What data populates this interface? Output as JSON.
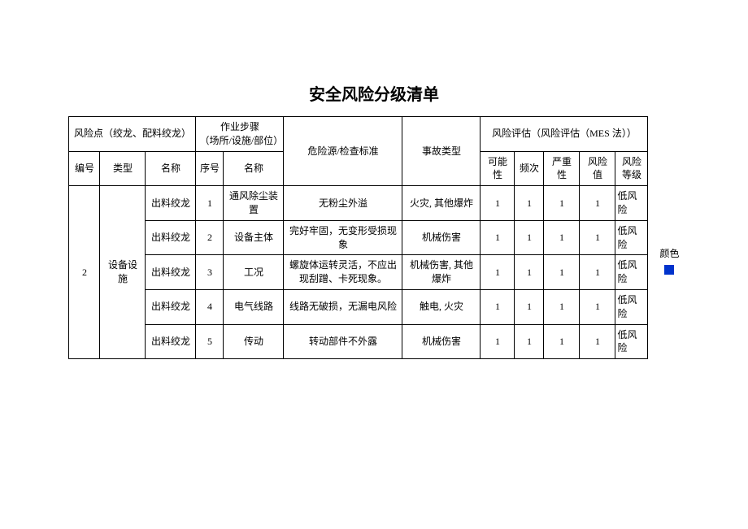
{
  "title": "安全风险分级清单",
  "header": {
    "risk_point": "风险点（绞龙、配料绞龙）",
    "work_step": "作业步骤\n（场所/设施/部位）",
    "hazard": "危险源/检查标准",
    "accident": "事故类型",
    "assessment": "风险评估（风险评估（MES 法））",
    "num": "编号",
    "type": "类型",
    "name": "名称",
    "seq": "序号",
    "step_name": "名称",
    "possibility": "可能性",
    "freq": "频次",
    "severity": "严重性",
    "riskval": "风险值",
    "level": "风险\n等级"
  },
  "group": {
    "num": "2",
    "type": "设备设施"
  },
  "rows": [
    {
      "name": "出料绞龙",
      "seq": "1",
      "step": "通风除尘装置",
      "hazard": "无粉尘外溢",
      "accident": "火灾, 其他爆炸",
      "p": "1",
      "f": "1",
      "s": "1",
      "rv": "1",
      "lvl": "低风险"
    },
    {
      "name": "出料绞龙",
      "seq": "2",
      "step": "设备主体",
      "hazard": "完好牢固，无变形受损现象",
      "accident": "机械伤害",
      "p": "1",
      "f": "1",
      "s": "1",
      "rv": "1",
      "lvl": "低风险"
    },
    {
      "name": "出料绞龙",
      "seq": "3",
      "step": "工况",
      "hazard": "螺旋体运转灵活，不应出现刮蹭、卡死现象。",
      "accident": "机械伤害, 其他爆炸",
      "p": "1",
      "f": "1",
      "s": "1",
      "rv": "1",
      "lvl": "低风险"
    },
    {
      "name": "出料绞龙",
      "seq": "4",
      "step": "电气线路",
      "hazard": "线路无破损，无漏电风险",
      "accident": "触电, 火灾",
      "p": "1",
      "f": "1",
      "s": "1",
      "rv": "1",
      "lvl": "低风险"
    },
    {
      "name": "出料绞龙",
      "seq": "5",
      "step": "传动",
      "hazard": "转动部件不外露",
      "accident": "机械伤害",
      "p": "1",
      "f": "1",
      "s": "1",
      "rv": "1",
      "lvl": "低风险"
    }
  ],
  "color_label": "颜色",
  "swatch_color": "#0033cc"
}
